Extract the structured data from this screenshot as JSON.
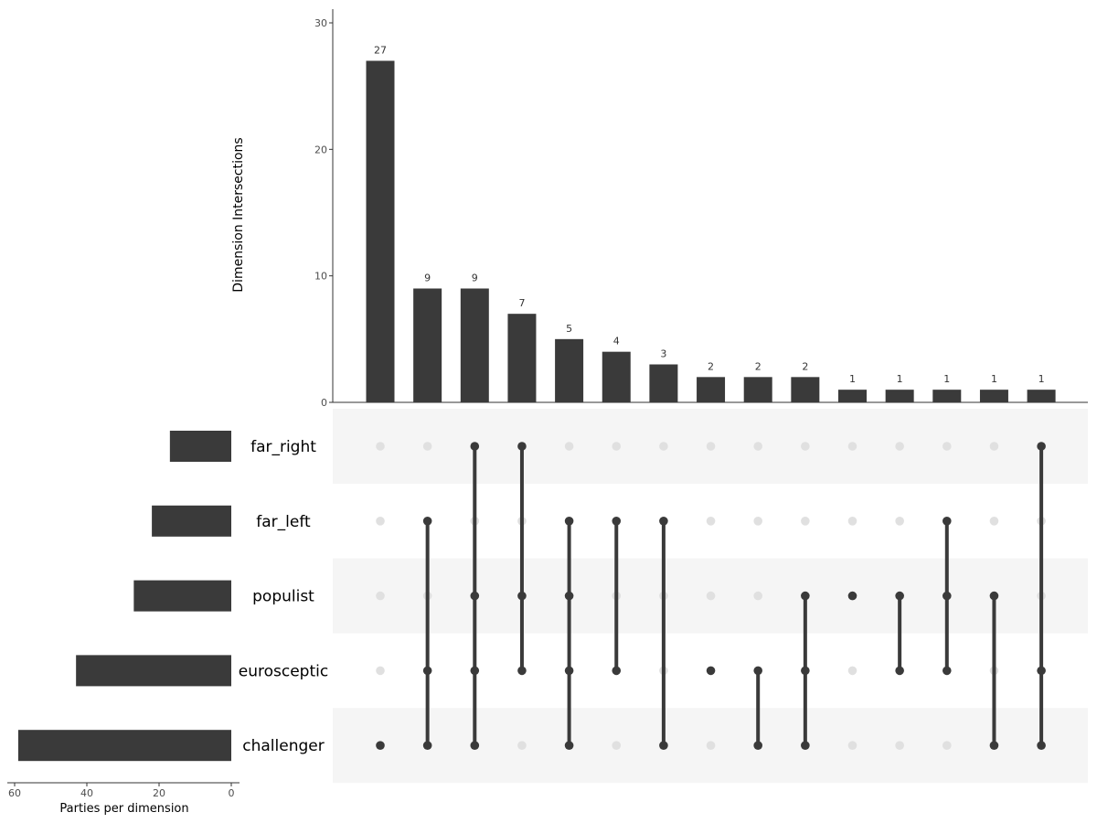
{
  "chart_data": {
    "type": "upset",
    "colors": {
      "bar": "#3a3a3a",
      "dot_active": "#3a3a3a",
      "dot_inactive": "#e0e0e0",
      "stripe": "#f5f5f5",
      "axis": "#333333"
    },
    "intersections": {
      "ylabel": "Dimension Intersections",
      "ylim": [
        0,
        30
      ],
      "yticks": [
        0,
        10,
        20,
        30
      ],
      "values": [
        27,
        9,
        9,
        7,
        5,
        4,
        3,
        2,
        2,
        2,
        1,
        1,
        1,
        1,
        1
      ],
      "value_labels": [
        "27",
        "9",
        "9",
        "7",
        "5",
        "4",
        "3",
        "2",
        "2",
        "2",
        "1",
        "1",
        "1",
        "1",
        "1"
      ],
      "membership": [
        [
          "challenger"
        ],
        [
          "far_left",
          "eurosceptic",
          "challenger"
        ],
        [
          "far_right",
          "populist",
          "eurosceptic",
          "challenger"
        ],
        [
          "far_right",
          "populist",
          "eurosceptic"
        ],
        [
          "far_left",
          "populist",
          "eurosceptic",
          "challenger"
        ],
        [
          "far_left",
          "eurosceptic"
        ],
        [
          "far_left",
          "challenger"
        ],
        [
          "eurosceptic"
        ],
        [
          "eurosceptic",
          "challenger"
        ],
        [
          "populist",
          "eurosceptic",
          "challenger"
        ],
        [
          "populist"
        ],
        [
          "populist",
          "eurosceptic"
        ],
        [
          "far_left",
          "populist",
          "eurosceptic"
        ],
        [
          "populist",
          "challenger"
        ],
        [
          "far_right",
          "eurosceptic",
          "challenger"
        ]
      ]
    },
    "sets": {
      "names": [
        "far_right",
        "far_left",
        "populist",
        "eurosceptic",
        "challenger"
      ],
      "sizes": [
        17,
        22,
        27,
        43,
        59
      ],
      "xlabel": "Parties per dimension",
      "xlim": [
        60,
        0
      ],
      "xticks": [
        60,
        40,
        20,
        0
      ]
    }
  }
}
